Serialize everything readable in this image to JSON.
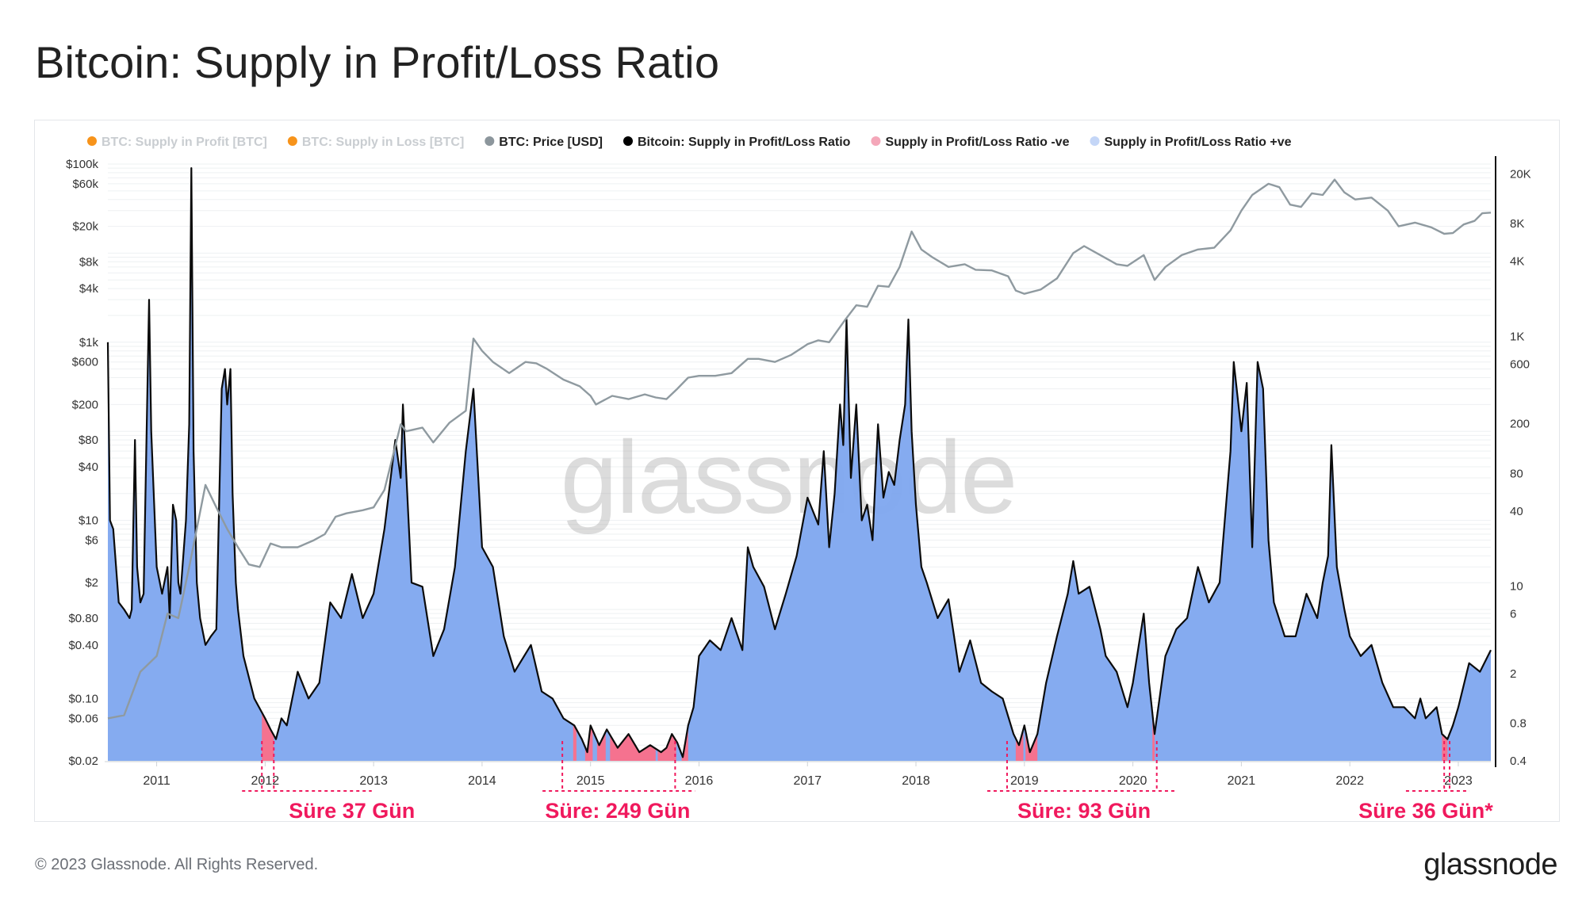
{
  "title": "Bitcoin: Supply in Profit/Loss Ratio",
  "footer": {
    "copyright": "© 2023 Glassnode. All Rights Reserved.",
    "brand": "glassnode"
  },
  "watermark": "glassnode",
  "colors": {
    "ratio_line": "#0b0b0b",
    "price_line": "#8f9aa0",
    "fill_positive": "#7ea6ef",
    "fill_negative": "#f5728f",
    "annotation": "#f0195d",
    "legend_profit": "#f7931a",
    "legend_loss": "#f7931a",
    "legend_price": "#8c969c",
    "legend_ratio": "#000000",
    "legend_neg": "#f4a7b9",
    "legend_pos": "#c4d6f7"
  },
  "chart_data": {
    "type": "area",
    "legend": [
      {
        "name": "BTC: Supply in Profit [BTC]",
        "color": "#f7931a",
        "muted": true
      },
      {
        "name": "BTC: Supply in Loss [BTC]",
        "color": "#f7931a",
        "muted": true
      },
      {
        "name": "BTC: Price [USD]",
        "color": "#8c969c",
        "muted": false
      },
      {
        "name": "Bitcoin: Supply in Profit/Loss Ratio",
        "color": "#000000",
        "muted": false
      },
      {
        "name": "Supply in Profit/Loss Ratio -ve",
        "color": "#f4a7b9",
        "muted": false
      },
      {
        "name": "Supply in Profit/Loss Ratio +ve",
        "color": "#c4d6f7",
        "muted": false
      }
    ],
    "x_ticks": [
      "2011",
      "2012",
      "2013",
      "2014",
      "2015",
      "2016",
      "2017",
      "2018",
      "2019",
      "2020",
      "2021",
      "2022",
      "2023"
    ],
    "x_range": [
      2010.55,
      2023.3
    ],
    "left_axis": {
      "scale": "log",
      "range": [
        0.02,
        100000
      ],
      "ticks": [
        {
          "v": 100000,
          "label": "$100k"
        },
        {
          "v": 60000,
          "label": "$60k"
        },
        {
          "v": 20000,
          "label": "$20k"
        },
        {
          "v": 8000,
          "label": "$8k"
        },
        {
          "v": 4000,
          "label": "$4k"
        },
        {
          "v": 1000,
          "label": "$1k"
        },
        {
          "v": 600,
          "label": "$600"
        },
        {
          "v": 200,
          "label": "$200"
        },
        {
          "v": 80,
          "label": "$80"
        },
        {
          "v": 40,
          "label": "$40"
        },
        {
          "v": 10,
          "label": "$10"
        },
        {
          "v": 6,
          "label": "$6"
        },
        {
          "v": 2,
          "label": "$2"
        },
        {
          "v": 0.8,
          "label": "$0.80"
        },
        {
          "v": 0.4,
          "label": "$0.40"
        },
        {
          "v": 0.1,
          "label": "$0.10"
        },
        {
          "v": 0.06,
          "label": "$0.06"
        },
        {
          "v": 0.02,
          "label": "$0.02"
        }
      ]
    },
    "right_axis": {
      "scale": "log",
      "range": [
        0.4,
        24000
      ],
      "ticks": [
        {
          "v": 20000,
          "label": "20K"
        },
        {
          "v": 8000,
          "label": "8K"
        },
        {
          "v": 4000,
          "label": "4K"
        },
        {
          "v": 1000,
          "label": "1K"
        },
        {
          "v": 600,
          "label": "600"
        },
        {
          "v": 200,
          "label": "200"
        },
        {
          "v": 80,
          "label": "80"
        },
        {
          "v": 40,
          "label": "40"
        },
        {
          "v": 10,
          "label": "10"
        },
        {
          "v": 6,
          "label": "6"
        },
        {
          "v": 2,
          "label": "2"
        },
        {
          "v": 0.8,
          "label": "0.8"
        },
        {
          "v": 0.4,
          "label": "0.4"
        }
      ]
    },
    "price_usd": [
      [
        2010.55,
        0.06
      ],
      [
        2010.7,
        0.065
      ],
      [
        2010.85,
        0.2
      ],
      [
        2011.0,
        0.3
      ],
      [
        2011.1,
        0.9
      ],
      [
        2011.2,
        0.8
      ],
      [
        2011.3,
        3
      ],
      [
        2011.45,
        25
      ],
      [
        2011.55,
        14
      ],
      [
        2011.65,
        8
      ],
      [
        2011.75,
        5
      ],
      [
        2011.85,
        3.2
      ],
      [
        2011.95,
        3
      ],
      [
        2012.05,
        5.5
      ],
      [
        2012.15,
        5
      ],
      [
        2012.3,
        5
      ],
      [
        2012.45,
        6
      ],
      [
        2012.55,
        7
      ],
      [
        2012.65,
        11
      ],
      [
        2012.75,
        12
      ],
      [
        2012.9,
        13
      ],
      [
        2013.0,
        14
      ],
      [
        2013.1,
        22
      ],
      [
        2013.25,
        120
      ],
      [
        2013.3,
        100
      ],
      [
        2013.45,
        110
      ],
      [
        2013.55,
        75
      ],
      [
        2013.7,
        125
      ],
      [
        2013.85,
        170
      ],
      [
        2013.92,
        1100
      ],
      [
        2014.0,
        800
      ],
      [
        2014.1,
        600
      ],
      [
        2014.25,
        450
      ],
      [
        2014.4,
        600
      ],
      [
        2014.5,
        580
      ],
      [
        2014.6,
        500
      ],
      [
        2014.75,
        380
      ],
      [
        2014.9,
        320
      ],
      [
        2015.0,
        250
      ],
      [
        2015.05,
        200
      ],
      [
        2015.2,
        250
      ],
      [
        2015.35,
        230
      ],
      [
        2015.5,
        260
      ],
      [
        2015.6,
        240
      ],
      [
        2015.7,
        230
      ],
      [
        2015.8,
        300
      ],
      [
        2015.9,
        400
      ],
      [
        2016.0,
        420
      ],
      [
        2016.15,
        420
      ],
      [
        2016.3,
        450
      ],
      [
        2016.45,
        650
      ],
      [
        2016.55,
        650
      ],
      [
        2016.7,
        600
      ],
      [
        2016.85,
        720
      ],
      [
        2017.0,
        950
      ],
      [
        2017.1,
        1050
      ],
      [
        2017.2,
        1000
      ],
      [
        2017.35,
        1800
      ],
      [
        2017.45,
        2600
      ],
      [
        2017.55,
        2500
      ],
      [
        2017.65,
        4300
      ],
      [
        2017.75,
        4200
      ],
      [
        2017.85,
        7000
      ],
      [
        2017.96,
        17500
      ],
      [
        2018.05,
        11000
      ],
      [
        2018.15,
        9000
      ],
      [
        2018.3,
        7000
      ],
      [
        2018.45,
        7500
      ],
      [
        2018.55,
        6500
      ],
      [
        2018.7,
        6400
      ],
      [
        2018.85,
        5500
      ],
      [
        2018.92,
        3800
      ],
      [
        2019.0,
        3500
      ],
      [
        2019.15,
        3900
      ],
      [
        2019.3,
        5200
      ],
      [
        2019.45,
        10000
      ],
      [
        2019.55,
        12000
      ],
      [
        2019.7,
        9500
      ],
      [
        2019.85,
        7500
      ],
      [
        2019.95,
        7200
      ],
      [
        2020.1,
        9500
      ],
      [
        2020.2,
        5000
      ],
      [
        2020.3,
        7000
      ],
      [
        2020.45,
        9500
      ],
      [
        2020.6,
        11000
      ],
      [
        2020.75,
        11500
      ],
      [
        2020.9,
        18000
      ],
      [
        2021.0,
        30000
      ],
      [
        2021.1,
        45000
      ],
      [
        2021.25,
        60000
      ],
      [
        2021.35,
        55000
      ],
      [
        2021.45,
        35000
      ],
      [
        2021.55,
        33000
      ],
      [
        2021.65,
        47000
      ],
      [
        2021.75,
        45000
      ],
      [
        2021.86,
        67000
      ],
      [
        2021.95,
        48000
      ],
      [
        2022.05,
        40000
      ],
      [
        2022.2,
        42000
      ],
      [
        2022.35,
        30000
      ],
      [
        2022.45,
        20000
      ],
      [
        2022.6,
        22000
      ],
      [
        2022.75,
        19500
      ],
      [
        2022.87,
        16500
      ],
      [
        2022.95,
        16800
      ],
      [
        2023.05,
        21000
      ],
      [
        2023.15,
        23000
      ],
      [
        2023.22,
        28000
      ],
      [
        2023.3,
        28500
      ]
    ],
    "ratio": [
      [
        2010.55,
        1000
      ],
      [
        2010.57,
        10
      ],
      [
        2010.6,
        8
      ],
      [
        2010.65,
        1.2
      ],
      [
        2010.7,
        1.0
      ],
      [
        2010.75,
        0.8
      ],
      [
        2010.77,
        1.0
      ],
      [
        2010.8,
        80
      ],
      [
        2010.82,
        3
      ],
      [
        2010.85,
        1.2
      ],
      [
        2010.88,
        1.5
      ],
      [
        2010.93,
        3000
      ],
      [
        2010.95,
        100
      ],
      [
        2011.0,
        3
      ],
      [
        2011.05,
        1.5
      ],
      [
        2011.1,
        3
      ],
      [
        2011.12,
        0.8
      ],
      [
        2011.15,
        15
      ],
      [
        2011.18,
        10
      ],
      [
        2011.2,
        2
      ],
      [
        2011.22,
        1.5
      ],
      [
        2011.27,
        10
      ],
      [
        2011.3,
        120
      ],
      [
        2011.32,
        90000
      ],
      [
        2011.34,
        60
      ],
      [
        2011.37,
        2
      ],
      [
        2011.4,
        0.8
      ],
      [
        2011.45,
        0.4
      ],
      [
        2011.5,
        0.5
      ],
      [
        2011.55,
        0.6
      ],
      [
        2011.6,
        300
      ],
      [
        2011.63,
        500
      ],
      [
        2011.65,
        200
      ],
      [
        2011.68,
        500
      ],
      [
        2011.7,
        20
      ],
      [
        2011.73,
        2
      ],
      [
        2011.75,
        1
      ],
      [
        2011.8,
        0.3
      ],
      [
        2011.9,
        0.1
      ],
      [
        2012.0,
        0.06
      ],
      [
        2012.05,
        0.045
      ],
      [
        2012.1,
        0.035
      ],
      [
        2012.15,
        0.06
      ],
      [
        2012.2,
        0.05
      ],
      [
        2012.3,
        0.2
      ],
      [
        2012.4,
        0.1
      ],
      [
        2012.5,
        0.15
      ],
      [
        2012.6,
        1.2
      ],
      [
        2012.7,
        0.8
      ],
      [
        2012.8,
        2.5
      ],
      [
        2012.9,
        0.8
      ],
      [
        2013.0,
        1.5
      ],
      [
        2013.1,
        8
      ],
      [
        2013.2,
        80
      ],
      [
        2013.25,
        30
      ],
      [
        2013.27,
        200
      ],
      [
        2013.35,
        2
      ],
      [
        2013.45,
        1.8
      ],
      [
        2013.55,
        0.3
      ],
      [
        2013.65,
        0.6
      ],
      [
        2013.75,
        3
      ],
      [
        2013.85,
        60
      ],
      [
        2013.92,
        300
      ],
      [
        2014.0,
        5
      ],
      [
        2014.1,
        3
      ],
      [
        2014.2,
        0.5
      ],
      [
        2014.3,
        0.2
      ],
      [
        2014.45,
        0.4
      ],
      [
        2014.55,
        0.12
      ],
      [
        2014.65,
        0.1
      ],
      [
        2014.75,
        0.06
      ],
      [
        2014.85,
        0.05
      ],
      [
        2014.92,
        0.035
      ],
      [
        2014.97,
        0.025
      ],
      [
        2015.0,
        0.05
      ],
      [
        2015.08,
        0.03
      ],
      [
        2015.15,
        0.045
      ],
      [
        2015.25,
        0.028
      ],
      [
        2015.35,
        0.04
      ],
      [
        2015.45,
        0.025
      ],
      [
        2015.55,
        0.03
      ],
      [
        2015.65,
        0.025
      ],
      [
        2015.7,
        0.028
      ],
      [
        2015.75,
        0.04
      ],
      [
        2015.8,
        0.032
      ],
      [
        2015.85,
        0.022
      ],
      [
        2015.9,
        0.05
      ],
      [
        2015.95,
        0.08
      ],
      [
        2016.0,
        0.3
      ],
      [
        2016.1,
        0.45
      ],
      [
        2016.2,
        0.35
      ],
      [
        2016.3,
        0.8
      ],
      [
        2016.4,
        0.35
      ],
      [
        2016.45,
        5
      ],
      [
        2016.5,
        3
      ],
      [
        2016.6,
        1.8
      ],
      [
        2016.7,
        0.6
      ],
      [
        2016.8,
        1.5
      ],
      [
        2016.9,
        4
      ],
      [
        2017.0,
        18
      ],
      [
        2017.1,
        9
      ],
      [
        2017.15,
        60
      ],
      [
        2017.2,
        5
      ],
      [
        2017.25,
        20
      ],
      [
        2017.3,
        200
      ],
      [
        2017.33,
        70
      ],
      [
        2017.36,
        1800
      ],
      [
        2017.4,
        30
      ],
      [
        2017.45,
        200
      ],
      [
        2017.5,
        10
      ],
      [
        2017.55,
        15
      ],
      [
        2017.6,
        6
      ],
      [
        2017.65,
        120
      ],
      [
        2017.7,
        18
      ],
      [
        2017.75,
        35
      ],
      [
        2017.8,
        25
      ],
      [
        2017.85,
        80
      ],
      [
        2017.9,
        200
      ],
      [
        2017.93,
        1800
      ],
      [
        2017.96,
        100
      ],
      [
        2018.0,
        15
      ],
      [
        2018.05,
        3
      ],
      [
        2018.1,
        2
      ],
      [
        2018.2,
        0.8
      ],
      [
        2018.3,
        1.3
      ],
      [
        2018.4,
        0.2
      ],
      [
        2018.5,
        0.45
      ],
      [
        2018.6,
        0.15
      ],
      [
        2018.7,
        0.12
      ],
      [
        2018.8,
        0.1
      ],
      [
        2018.9,
        0.04
      ],
      [
        2018.95,
        0.03
      ],
      [
        2019.0,
        0.05
      ],
      [
        2019.05,
        0.025
      ],
      [
        2019.12,
        0.04
      ],
      [
        2019.2,
        0.15
      ],
      [
        2019.3,
        0.5
      ],
      [
        2019.4,
        1.5
      ],
      [
        2019.45,
        3.5
      ],
      [
        2019.5,
        1.5
      ],
      [
        2019.6,
        1.8
      ],
      [
        2019.7,
        0.6
      ],
      [
        2019.75,
        0.3
      ],
      [
        2019.85,
        0.2
      ],
      [
        2019.95,
        0.08
      ],
      [
        2020.0,
        0.15
      ],
      [
        2020.1,
        0.9
      ],
      [
        2020.15,
        0.15
      ],
      [
        2020.2,
        0.04
      ],
      [
        2020.3,
        0.3
      ],
      [
        2020.4,
        0.6
      ],
      [
        2020.5,
        0.8
      ],
      [
        2020.6,
        3
      ],
      [
        2020.7,
        1.2
      ],
      [
        2020.8,
        2
      ],
      [
        2020.9,
        60
      ],
      [
        2020.93,
        600
      ],
      [
        2021.0,
        100
      ],
      [
        2021.05,
        350
      ],
      [
        2021.1,
        5
      ],
      [
        2021.15,
        600
      ],
      [
        2021.2,
        300
      ],
      [
        2021.25,
        6
      ],
      [
        2021.3,
        1.2
      ],
      [
        2021.4,
        0.5
      ],
      [
        2021.5,
        0.5
      ],
      [
        2021.6,
        1.5
      ],
      [
        2021.7,
        0.8
      ],
      [
        2021.75,
        2
      ],
      [
        2021.8,
        4
      ],
      [
        2021.83,
        70
      ],
      [
        2021.88,
        3
      ],
      [
        2021.95,
        1
      ],
      [
        2022.0,
        0.5
      ],
      [
        2022.1,
        0.3
      ],
      [
        2022.2,
        0.4
      ],
      [
        2022.3,
        0.15
      ],
      [
        2022.4,
        0.08
      ],
      [
        2022.5,
        0.08
      ],
      [
        2022.6,
        0.06
      ],
      [
        2022.65,
        0.1
      ],
      [
        2022.7,
        0.06
      ],
      [
        2022.8,
        0.08
      ],
      [
        2022.85,
        0.04
      ],
      [
        2022.9,
        0.035
      ],
      [
        2022.95,
        0.05
      ],
      [
        2023.0,
        0.08
      ],
      [
        2023.1,
        0.25
      ],
      [
        2023.2,
        0.2
      ],
      [
        2023.3,
        0.35
      ]
    ],
    "negative_periods": [
      [
        2011.97,
        2012.08
      ],
      [
        2014.84,
        2014.87
      ],
      [
        2014.95,
        2015.02
      ],
      [
        2015.06,
        2015.14
      ],
      [
        2015.18,
        2015.6
      ],
      [
        2015.62,
        2015.79
      ],
      [
        2015.84,
        2015.9
      ],
      [
        2018.92,
        2018.99
      ],
      [
        2019.01,
        2019.12
      ],
      [
        2020.18,
        2020.2
      ],
      [
        2022.85,
        2022.9
      ]
    ],
    "annotations": [
      {
        "label": "Süre 37 Gün",
        "start": 2011.97,
        "end": 2012.08,
        "text_x": 2012.8
      },
      {
        "label": "Süre: 249 Gün",
        "start": 2014.74,
        "end": 2015.78,
        "text_x": 2015.25
      },
      {
        "label": "Süre: 93 Gün",
        "start": 2018.84,
        "end": 2020.22,
        "text_x": 2019.55
      },
      {
        "label": "Süre 36 Gün*",
        "start": 2022.87,
        "end": 2022.92,
        "text_x": 2022.7
      }
    ]
  }
}
